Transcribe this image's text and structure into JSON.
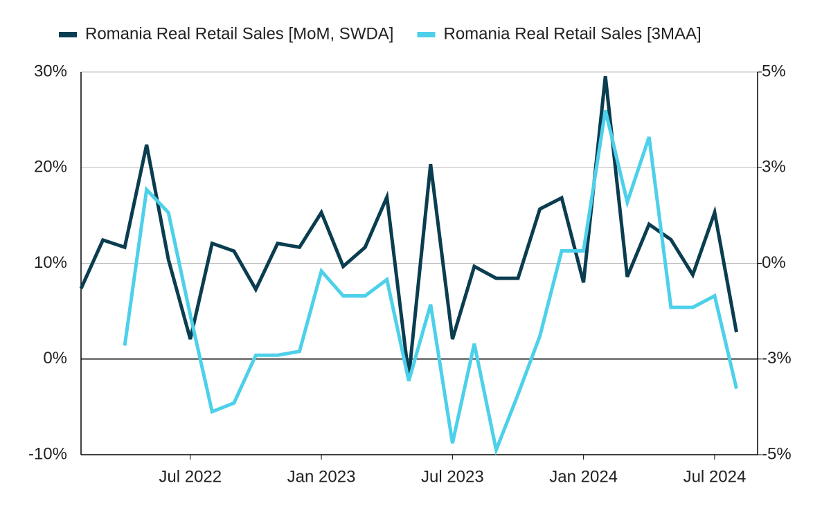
{
  "chart_data": {
    "type": "line",
    "x": [
      "2022-02",
      "2022-03",
      "2022-04",
      "2022-05",
      "2022-06",
      "2022-07",
      "2022-08",
      "2022-09",
      "2022-10",
      "2022-11",
      "2022-12",
      "2023-01",
      "2023-02",
      "2023-03",
      "2023-04",
      "2023-05",
      "2023-06",
      "2023-07",
      "2023-08",
      "2023-09",
      "2023-10",
      "2023-11",
      "2023-12",
      "2024-01",
      "2024-02",
      "2024-03",
      "2024-04",
      "2024-05",
      "2024-06",
      "2024-07",
      "2024-08"
    ],
    "series": [
      {
        "name": "Romania Real Retail Sales [MoM, SWDA]",
        "color": "#0b3d50",
        "axis": "y2",
        "values": [
          -0.66,
          0.61,
          0.42,
          3.1,
          0.1,
          -1.98,
          0.52,
          0.32,
          -0.68,
          0.52,
          0.42,
          1.33,
          -0.08,
          0.42,
          1.73,
          -2.97,
          2.59,
          -1.98,
          -0.08,
          -0.39,
          -0.39,
          1.42,
          1.71,
          -0.5,
          4.89,
          -0.35,
          1.02,
          0.62,
          -0.3,
          1.33,
          -1.8
        ]
      },
      {
        "name": "Romania Real Retail Sales [3MAA]",
        "color": "#4dd0ea",
        "values": [
          null,
          null,
          1.4,
          17.7,
          15.3,
          4.6,
          -5.5,
          -4.6,
          0.4,
          0.4,
          0.8,
          9.2,
          6.6,
          6.6,
          8.3,
          -2.3,
          5.7,
          -8.8,
          1.6,
          -9.5,
          -3.7,
          2.4,
          11.3,
          11.3,
          26.0,
          16.4,
          23.2,
          5.4,
          5.4,
          6.6,
          -3.1
        ]
      }
    ],
    "ylim": [
      -10,
      30
    ],
    "yticks": [
      {
        "value": -10,
        "label": "-10%"
      },
      {
        "value": 0,
        "label": "0%"
      },
      {
        "value": 10,
        "label": "10%"
      },
      {
        "value": 20,
        "label": "20%"
      },
      {
        "value": 30,
        "label": "30%"
      }
    ],
    "y2lim": [
      -5,
      5
    ],
    "y2ticks": [
      {
        "value": -5,
        "label": "-5%"
      },
      {
        "value": -2.5,
        "label": "-3%"
      },
      {
        "value": 0,
        "label": "0%"
      },
      {
        "value": 2.5,
        "label": "3%"
      },
      {
        "value": 5,
        "label": "5%"
      }
    ],
    "xticks": [
      {
        "value": "2022-07",
        "label": "Jul 2022"
      },
      {
        "value": "2023-01",
        "label": "Jan 2023"
      },
      {
        "value": "2023-07",
        "label": "Jul 2023"
      },
      {
        "value": "2024-01",
        "label": "Jan 2024"
      },
      {
        "value": "2024-07",
        "label": "Jul 2024"
      }
    ],
    "grid": true,
    "legend": "top"
  }
}
